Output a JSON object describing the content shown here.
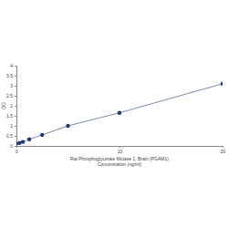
{
  "chart_data": {
    "type": "line",
    "xlabel": "Rat Phosphoglycerate Mutase 1, Brain (PGAM1)\nConcentration (ng/ml)",
    "ylabel": "OD",
    "x": [
      0,
      0.3125,
      0.625,
      1.25,
      2.5,
      5,
      10,
      20
    ],
    "series": [
      {
        "name": "OD",
        "color": "#1f3a6e",
        "marker": "circle",
        "line_style": "solid",
        "values": [
          0.12,
          0.15,
          0.2,
          0.33,
          0.55,
          1.0,
          1.65,
          3.1
        ]
      }
    ],
    "xlim": [
      0,
      20
    ],
    "xticks": [
      0,
      10,
      20
    ],
    "ylim": [
      0,
      4
    ],
    "yticks": [
      0,
      0.5,
      1,
      1.5,
      2,
      2.5,
      3,
      3.5,
      4
    ],
    "grid": false
  }
}
